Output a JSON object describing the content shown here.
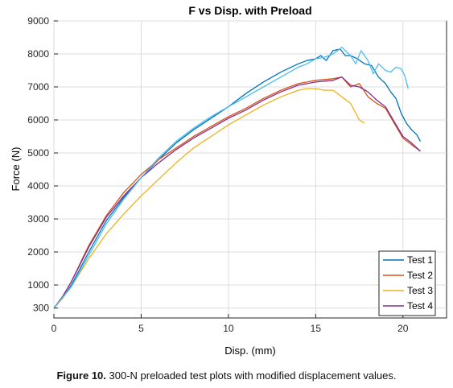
{
  "caption": {
    "label": "Figure 10.",
    "text": "300-N preloaded test plots with modified displacement values."
  },
  "chart_data": {
    "type": "line",
    "title": "F vs Disp. with Preload",
    "xlabel": "Disp. (mm)",
    "ylabel": "Force (N)",
    "xlim": [
      0,
      22.5
    ],
    "ylim": [
      0,
      9000
    ],
    "xticks": [
      0,
      5,
      10,
      15,
      20
    ],
    "yticks": [
      300,
      1000,
      2000,
      3000,
      4000,
      5000,
      6000,
      7000,
      8000,
      9000
    ],
    "grid": true,
    "legend_position": "bottom-right",
    "series": [
      {
        "name": "Test 1",
        "color": "#0072BD",
        "x": [
          0,
          0.5,
          1,
          2,
          3,
          4,
          5,
          6,
          7,
          8,
          9,
          10,
          11,
          12,
          13,
          14,
          14.5,
          15,
          15.3,
          15.6,
          16,
          16.4,
          16.7,
          17,
          17.4,
          17.8,
          18.2,
          18.6,
          19,
          19.3,
          19.6,
          19.9,
          20.2,
          20.5,
          20.8,
          21
        ],
        "y": [
          300,
          600,
          1000,
          2000,
          2950,
          3650,
          4250,
          4800,
          5300,
          5700,
          6050,
          6400,
          6800,
          7150,
          7450,
          7700,
          7800,
          7850,
          7950,
          7800,
          8100,
          8150,
          7950,
          7950,
          7850,
          7700,
          7650,
          7300,
          7100,
          6850,
          6650,
          6200,
          5900,
          5700,
          5550,
          5350
        ]
      },
      {
        "name": "Test 2",
        "color": "#D95319",
        "x": [
          0,
          0.5,
          1,
          2,
          3,
          4,
          5,
          6,
          7,
          8,
          9,
          10,
          11,
          12,
          13,
          14,
          15,
          16,
          16.5,
          17,
          17.5,
          18,
          18.5,
          19,
          19.5,
          20,
          20.5,
          21
        ],
        "y": [
          300,
          650,
          1100,
          2200,
          3100,
          3800,
          4350,
          4800,
          5150,
          5500,
          5800,
          6100,
          6350,
          6650,
          6900,
          7100,
          7200,
          7250,
          7300,
          7000,
          7100,
          6700,
          6500,
          6350,
          5900,
          5450,
          5250,
          5050
        ]
      },
      {
        "name": "Test 3",
        "color": "#EDB120",
        "x": [
          0,
          0.5,
          1,
          2,
          3,
          4,
          5,
          6,
          7,
          8,
          9,
          10,
          11,
          12,
          13,
          14,
          14.5,
          15,
          15.5,
          16,
          16.5,
          17,
          17.5,
          17.8
        ],
        "y": [
          300,
          600,
          950,
          1800,
          2550,
          3150,
          3700,
          4200,
          4700,
          5150,
          5500,
          5850,
          6150,
          6450,
          6700,
          6900,
          6950,
          6950,
          6900,
          6900,
          6700,
          6500,
          6000,
          5900
        ]
      },
      {
        "name": "Test 4",
        "color": "#7E2F8E",
        "x": [
          0,
          0.5,
          1,
          2,
          3,
          4,
          5,
          6,
          7,
          8,
          9,
          10,
          11,
          12,
          13,
          14,
          15,
          16,
          16.5,
          17,
          17.5,
          18,
          18.5,
          19,
          19.5,
          20,
          20.5,
          21
        ],
        "y": [
          300,
          650,
          1100,
          2150,
          3050,
          3700,
          4250,
          4700,
          5100,
          5450,
          5750,
          6050,
          6300,
          6600,
          6850,
          7050,
          7150,
          7200,
          7300,
          7050,
          7000,
          6850,
          6600,
          6400,
          5950,
          5500,
          5300,
          5050
        ]
      },
      {
        "name": "",
        "color": "#4DBEEE",
        "x": [
          0,
          1,
          2,
          3,
          4,
          5,
          6,
          7,
          8,
          9,
          10,
          11,
          12,
          13,
          14,
          14.5,
          15,
          15.5,
          16,
          16.5,
          17,
          17.3,
          17.6,
          18,
          18.3,
          18.6,
          19,
          19.3,
          19.6,
          19.9,
          20.1,
          20.3
        ],
        "y": [
          300,
          950,
          1900,
          2850,
          3600,
          4250,
          4850,
          5350,
          5750,
          6100,
          6400,
          6700,
          7000,
          7300,
          7600,
          7700,
          7850,
          7900,
          8000,
          8200,
          7950,
          7700,
          8100,
          7800,
          7400,
          7700,
          7500,
          7450,
          7600,
          7550,
          7350,
          6950
        ]
      }
    ]
  }
}
